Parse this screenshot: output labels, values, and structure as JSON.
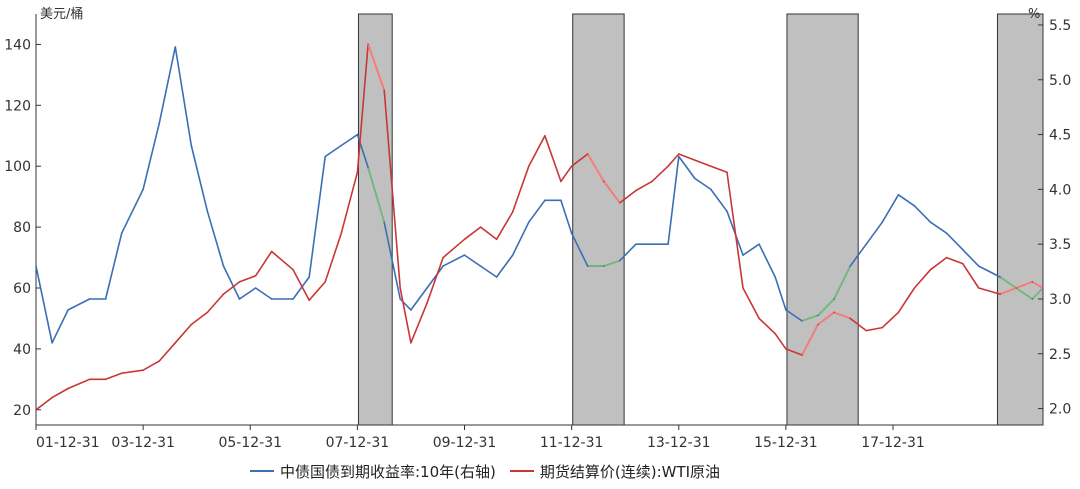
{
  "chart_data": {
    "type": "line",
    "left_axis_unit": "美元/桶",
    "right_axis_unit": "%",
    "x_tick_labels": [
      "01-12-31",
      "03-12-31",
      "05-12-31",
      "07-12-31",
      "09-12-31",
      "11-12-31",
      "13-12-31",
      "15-12-31",
      "17-12-31"
    ],
    "x_ticks": [
      2002.0,
      2004.0,
      2006.0,
      2008.0,
      2010.0,
      2012.0,
      2014.0,
      2016.0,
      2018.0
    ],
    "xlim": [
      2002.0,
      2020.8
    ],
    "ylim_left": [
      15,
      150
    ],
    "yticks_left": [
      20,
      40,
      60,
      80,
      100,
      120,
      140
    ],
    "ylim_right": [
      1.85,
      5.6
    ],
    "yticks_right": [
      2.0,
      2.5,
      3.0,
      3.5,
      4.0,
      4.5,
      5.0,
      5.5
    ],
    "yticks_right_labels": [
      "2.0",
      "2.5",
      "3.0",
      "3.5",
      "4.0",
      "4.5",
      "5.0",
      "5.5"
    ],
    "shaded_periods": [
      [
        2008.02,
        2008.65
      ],
      [
        2012.02,
        2012.98
      ],
      [
        2016.02,
        2017.35
      ],
      [
        2019.95,
        2020.8
      ]
    ],
    "colors": {
      "yield": "#3a6fb5",
      "oil": "#c83737",
      "oil_highlight": "#ff7b7b",
      "yield_highlight": "#6fbf6f",
      "shade": "#c0c0c0"
    },
    "series": [
      {
        "name": "中债国债到期收益率:10年(右轴)",
        "axis": "right",
        "x": [
          2002.0,
          2002.3,
          2002.6,
          2003.0,
          2003.3,
          2003.6,
          2004.0,
          2004.3,
          2004.6,
          2004.9,
          2005.2,
          2005.5,
          2005.8,
          2006.1,
          2006.4,
          2006.8,
          2007.1,
          2007.4,
          2007.7,
          2008.0,
          2008.2,
          2008.5,
          2008.8,
          2009.0,
          2009.3,
          2009.6,
          2010.0,
          2010.3,
          2010.6,
          2010.9,
          2011.2,
          2011.5,
          2011.8,
          2012.0,
          2012.3,
          2012.6,
          2012.9,
          2013.2,
          2013.5,
          2013.8,
          2014.0,
          2014.3,
          2014.6,
          2014.9,
          2015.2,
          2015.5,
          2015.8,
          2016.0,
          2016.3,
          2016.6,
          2016.9,
          2017.2,
          2017.5,
          2017.8,
          2018.1,
          2018.4,
          2018.7,
          2019.0,
          2019.3,
          2019.6,
          2020.0,
          2020.3,
          2020.6,
          2020.8
        ],
        "y": [
          3.3,
          2.6,
          2.9,
          3.0,
          3.0,
          3.6,
          4.0,
          4.6,
          5.3,
          4.4,
          3.8,
          3.3,
          3.0,
          3.1,
          3.0,
          3.0,
          3.2,
          4.3,
          4.4,
          4.5,
          4.2,
          3.7,
          3.0,
          2.9,
          3.1,
          3.3,
          3.4,
          3.3,
          3.2,
          3.4,
          3.7,
          3.9,
          3.9,
          3.6,
          3.3,
          3.3,
          3.35,
          3.5,
          3.5,
          3.5,
          4.3,
          4.1,
          4.0,
          3.8,
          3.4,
          3.5,
          3.2,
          2.9,
          2.8,
          2.85,
          3.0,
          3.3,
          3.5,
          3.7,
          3.95,
          3.85,
          3.7,
          3.6,
          3.45,
          3.3,
          3.2,
          3.1,
          3.0,
          3.1
        ]
      },
      {
        "name": "期货结算价(连续):WTI原油",
        "axis": "left",
        "x": [
          2002.0,
          2002.3,
          2002.6,
          2003.0,
          2003.3,
          2003.6,
          2004.0,
          2004.3,
          2004.6,
          2004.9,
          2005.2,
          2005.5,
          2005.8,
          2006.1,
          2006.4,
          2006.8,
          2007.1,
          2007.4,
          2007.7,
          2008.0,
          2008.2,
          2008.5,
          2008.8,
          2009.0,
          2009.3,
          2009.6,
          2010.0,
          2010.3,
          2010.6,
          2010.9,
          2011.2,
          2011.5,
          2011.8,
          2012.0,
          2012.3,
          2012.6,
          2012.9,
          2013.2,
          2013.5,
          2013.8,
          2014.0,
          2014.3,
          2014.6,
          2014.9,
          2015.2,
          2015.5,
          2015.8,
          2016.0,
          2016.3,
          2016.6,
          2016.9,
          2017.2,
          2017.5,
          2017.8,
          2018.1,
          2018.4,
          2018.7,
          2019.0,
          2019.3,
          2019.6,
          2020.0,
          2020.3,
          2020.6,
          2020.8
        ],
        "y": [
          20,
          24,
          27,
          30,
          30,
          32,
          33,
          36,
          42,
          48,
          52,
          58,
          62,
          64,
          72,
          66,
          56,
          62,
          78,
          98,
          140,
          125,
          60,
          42,
          55,
          70,
          76,
          80,
          76,
          85,
          100,
          110,
          95,
          100,
          104,
          95,
          88,
          92,
          95,
          100,
          104,
          102,
          100,
          98,
          60,
          50,
          45,
          40,
          38,
          48,
          52,
          50,
          46,
          47,
          52,
          60,
          66,
          70,
          68,
          60,
          58,
          60,
          62,
          60
        ]
      }
    ]
  }
}
